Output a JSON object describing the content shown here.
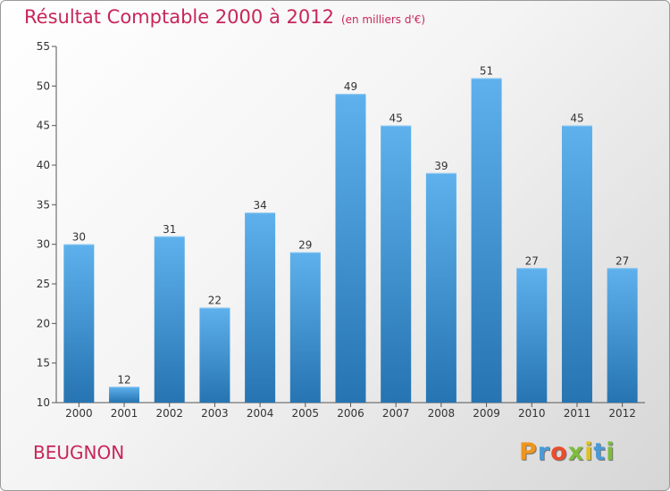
{
  "title": "Résultat Comptable 2000 à 2012",
  "subtitle": "(en milliers d'€)",
  "commune": "BEUGNON",
  "logo": {
    "text": "Proxiti",
    "letters": [
      "P",
      "r",
      "o",
      "x",
      "i",
      "t",
      "i"
    ],
    "colors": [
      "#f0951b",
      "#4a9ad6",
      "#e94d2e",
      "#7dbd3b",
      "#e0c21a",
      "#4a9ad6",
      "#7dbd3b"
    ]
  },
  "colors": {
    "title": "#c8265a",
    "bar_top": "#5eb1ec",
    "bar_bottom": "#2674b2"
  },
  "chart_data": {
    "type": "bar",
    "title": "Résultat Comptable 2000 à 2012",
    "ylabel": "",
    "xlabel": "",
    "categories": [
      "2000",
      "2001",
      "2002",
      "2003",
      "2004",
      "2005",
      "2006",
      "2007",
      "2008",
      "2009",
      "2010",
      "2011",
      "2012"
    ],
    "values": [
      30,
      12,
      31,
      22,
      34,
      29,
      49,
      45,
      39,
      51,
      27,
      45,
      27
    ],
    "ylim": [
      10,
      55
    ],
    "yticks": [
      10,
      15,
      20,
      25,
      30,
      35,
      40,
      45,
      50,
      55
    ],
    "grid": false
  }
}
